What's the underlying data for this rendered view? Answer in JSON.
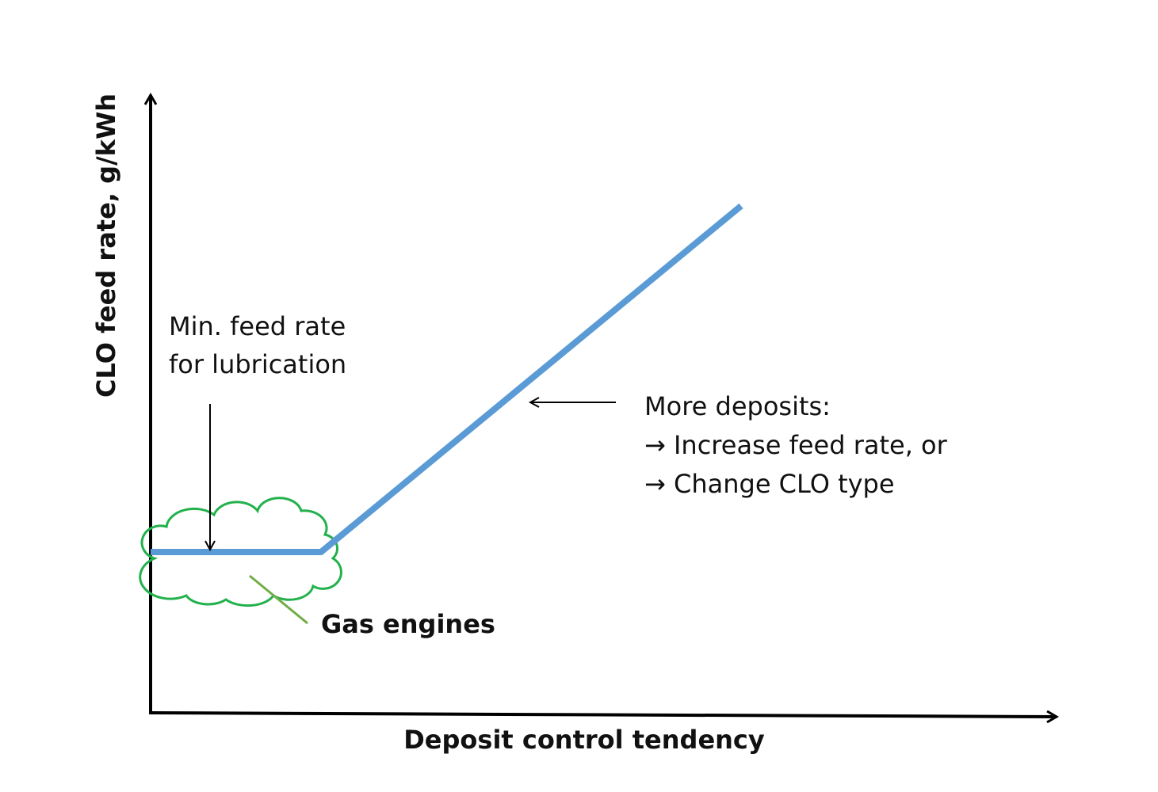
{
  "axes": {
    "y_label": "CLO feed rate, g/kWh",
    "x_label": "Deposit control tendency"
  },
  "annotations": {
    "min_feed_rate": [
      "Min. feed rate",
      "for lubrication"
    ],
    "more_deposits": [
      "More deposits:",
      "→ Increase feed rate, or",
      "→ Change CLO type"
    ],
    "gas_engines": "Gas engines"
  }
}
